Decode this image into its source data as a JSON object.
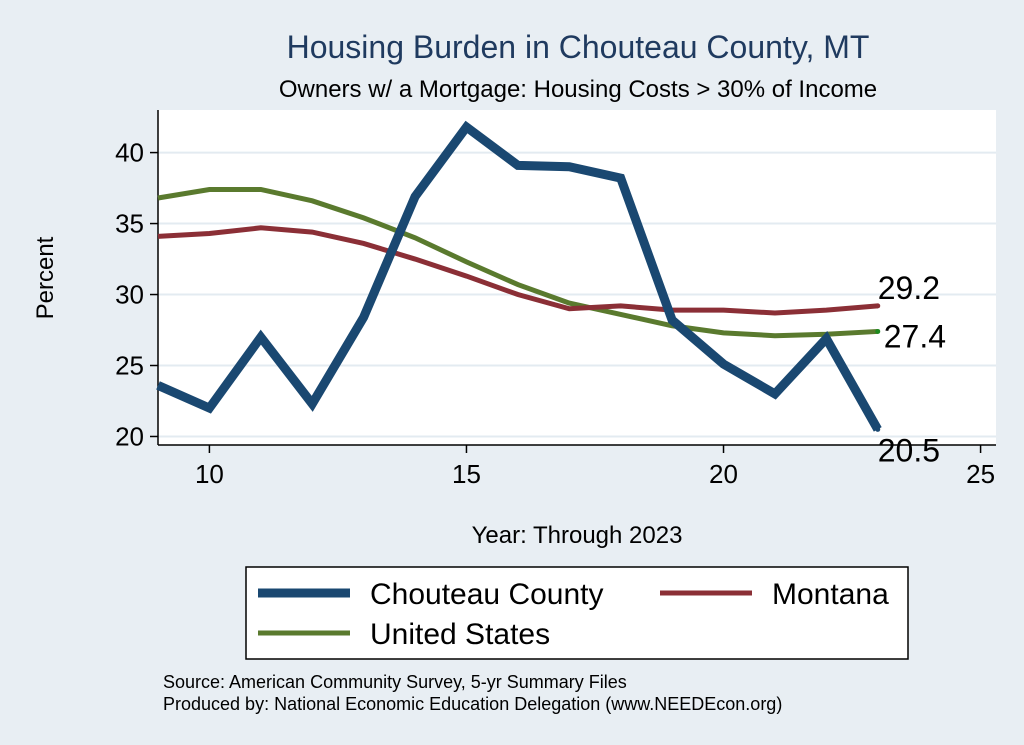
{
  "chart_data": {
    "type": "line",
    "title": "Housing Burden in Chouteau County, MT",
    "subtitle": "Owners w/ a Mortgage: Housing Costs > 30% of Income",
    "xlabel": "Year: Through 2023",
    "ylabel": "Percent",
    "xlim": [
      9,
      25.3
    ],
    "ylim": [
      19.4,
      43
    ],
    "xticks": [
      10,
      15,
      20,
      25
    ],
    "yticks": [
      20,
      25,
      30,
      35,
      40
    ],
    "grid": true,
    "x": [
      9,
      10,
      11,
      12,
      13,
      14,
      15,
      16,
      17,
      18,
      19,
      20,
      21,
      22,
      23
    ],
    "series": [
      {
        "name": "Chouteau County",
        "color": "#1a4871",
        "values": [
          23.6,
          22.0,
          27.0,
          22.3,
          28.4,
          36.9,
          41.8,
          39.1,
          39.0,
          38.2,
          28.2,
          25.1,
          23.0,
          26.9,
          20.5
        ],
        "end_label": "20.5"
      },
      {
        "name": "Montana",
        "color": "#8b2f36",
        "values": [
          34.1,
          34.3,
          34.7,
          34.4,
          33.6,
          32.5,
          31.3,
          30.0,
          29.0,
          29.2,
          28.9,
          28.9,
          28.7,
          28.9,
          29.2
        ],
        "end_label": "29.2"
      },
      {
        "name": "United States",
        "color": "#5a7a2e",
        "values": [
          36.8,
          37.4,
          37.4,
          36.6,
          35.4,
          34.0,
          32.3,
          30.7,
          29.4,
          28.6,
          27.8,
          27.3,
          27.1,
          27.2,
          27.4
        ],
        "end_label": "27.4"
      }
    ],
    "legend": {
      "position": "bottom",
      "items": [
        "Chouteau County",
        "Montana",
        "United States"
      ]
    }
  },
  "notes": {
    "source": "Source: American Community Survey, 5-yr Summary Files",
    "produced": "Produced by: National Economic Education Delegation (www.NEEDEcon.org)"
  }
}
